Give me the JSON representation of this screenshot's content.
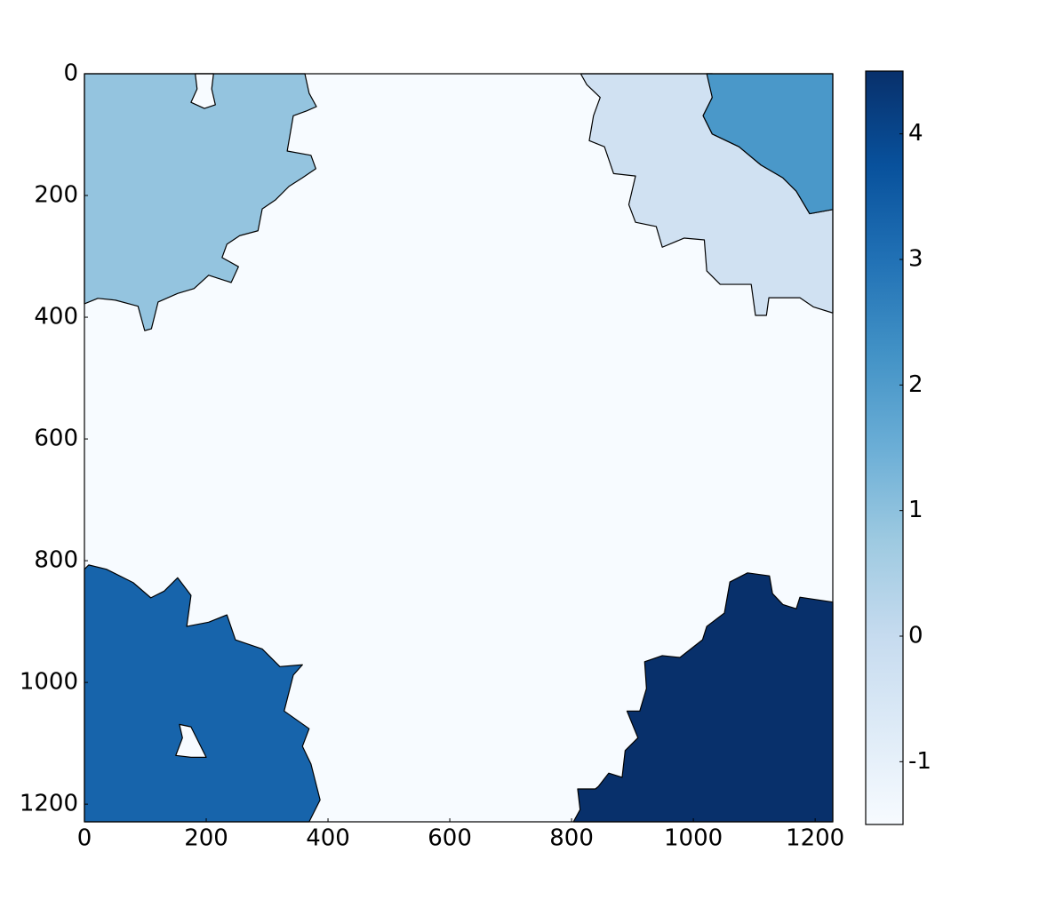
{
  "chart_data": {
    "type": "image",
    "xlim": [
      0,
      1229
    ],
    "ylim": [
      1229,
      0
    ],
    "xticks": [
      0,
      200,
      400,
      600,
      800,
      1000,
      1200
    ],
    "yticks": [
      0,
      200,
      400,
      600,
      800,
      1000,
      1200
    ],
    "background": {
      "value": -1.5,
      "color": "#f7fbff"
    },
    "regions": [
      {
        "value": 1,
        "color": "#94c4df",
        "outline": [
          [
            0,
            0
          ],
          [
            362,
            0
          ],
          [
            369,
            32
          ],
          [
            381,
            54
          ],
          [
            365,
            61
          ],
          [
            343,
            69
          ],
          [
            333,
            127
          ],
          [
            372,
            134
          ],
          [
            380,
            156
          ],
          [
            358,
            171
          ],
          [
            336,
            185
          ],
          [
            314,
            207
          ],
          [
            292,
            222
          ],
          [
            285,
            258
          ],
          [
            255,
            266
          ],
          [
            234,
            280
          ],
          [
            226,
            302
          ],
          [
            253,
            317
          ],
          [
            241,
            343
          ],
          [
            204,
            331
          ],
          [
            180,
            353
          ],
          [
            153,
            361
          ],
          [
            121,
            375
          ],
          [
            110,
            419
          ],
          [
            99,
            422
          ],
          [
            88,
            382
          ],
          [
            51,
            372
          ],
          [
            22,
            369
          ],
          [
            0,
            378
          ]
        ]
      },
      {
        "value": -1.5,
        "color": "#f7fbff",
        "outline": [
          [
            182,
            0
          ],
          [
            212,
            0
          ],
          [
            209,
            25
          ],
          [
            215,
            51
          ],
          [
            197,
            57
          ],
          [
            175,
            47
          ],
          [
            185,
            25
          ]
        ]
      },
      {
        "value": -0.5,
        "color": "#d0e1f2",
        "outline": [
          [
            815,
            0
          ],
          [
            1031,
            0
          ],
          [
            1031,
            39
          ],
          [
            1016,
            69
          ],
          [
            1031,
            99
          ],
          [
            1075,
            120
          ],
          [
            1111,
            150
          ],
          [
            1147,
            171
          ],
          [
            1169,
            193
          ],
          [
            1191,
            230
          ],
          [
            1229,
            223
          ],
          [
            1229,
            393
          ],
          [
            1197,
            383
          ],
          [
            1175,
            368
          ],
          [
            1124,
            368
          ],
          [
            1120,
            397
          ],
          [
            1102,
            397
          ],
          [
            1095,
            346
          ],
          [
            1044,
            346
          ],
          [
            1022,
            324
          ],
          [
            1018,
            273
          ],
          [
            985,
            270
          ],
          [
            949,
            285
          ],
          [
            939,
            251
          ],
          [
            905,
            244
          ],
          [
            894,
            215
          ],
          [
            905,
            168
          ],
          [
            869,
            164
          ],
          [
            854,
            120
          ],
          [
            829,
            110
          ],
          [
            836,
            69
          ],
          [
            847,
            39
          ],
          [
            825,
            18
          ]
        ]
      },
      {
        "value": 2,
        "color": "#4a98c9",
        "outline": [
          [
            1022,
            0
          ],
          [
            1229,
            0
          ],
          [
            1229,
            223
          ],
          [
            1191,
            230
          ],
          [
            1169,
            193
          ],
          [
            1147,
            171
          ],
          [
            1111,
            150
          ],
          [
            1075,
            120
          ],
          [
            1031,
            99
          ],
          [
            1016,
            69
          ],
          [
            1031,
            39
          ]
        ]
      },
      {
        "value": 3,
        "color": "#1764ab",
        "outline": [
          [
            0,
            1229
          ],
          [
            369,
            1229
          ],
          [
            387,
            1193
          ],
          [
            372,
            1134
          ],
          [
            358,
            1105
          ],
          [
            369,
            1076
          ],
          [
            328,
            1047
          ],
          [
            343,
            988
          ],
          [
            358,
            971
          ],
          [
            321,
            974
          ],
          [
            292,
            945
          ],
          [
            248,
            930
          ],
          [
            234,
            889
          ],
          [
            204,
            901
          ],
          [
            168,
            908
          ],
          [
            175,
            857
          ],
          [
            153,
            828
          ],
          [
            131,
            850
          ],
          [
            109,
            861
          ],
          [
            80,
            836
          ],
          [
            36,
            814
          ],
          [
            7,
            807
          ],
          [
            0,
            814
          ]
        ]
      },
      {
        "value": -1.5,
        "color": "#f7fbff",
        "outline": [
          [
            156,
            1069
          ],
          [
            175,
            1073
          ],
          [
            200,
            1123
          ],
          [
            175,
            1123
          ],
          [
            150,
            1120
          ],
          [
            161,
            1091
          ]
        ]
      },
      {
        "value": 4.5,
        "color": "#08306b",
        "outline": [
          [
            803,
            1229
          ],
          [
            1229,
            1229
          ],
          [
            1229,
            868
          ],
          [
            1175,
            860
          ],
          [
            1169,
            879
          ],
          [
            1147,
            872
          ],
          [
            1130,
            854
          ],
          [
            1125,
            825
          ],
          [
            1089,
            820
          ],
          [
            1060,
            835
          ],
          [
            1051,
            886
          ],
          [
            1022,
            908
          ],
          [
            1015,
            930
          ],
          [
            978,
            959
          ],
          [
            949,
            956
          ],
          [
            920,
            966
          ],
          [
            923,
            1010
          ],
          [
            912,
            1047
          ],
          [
            891,
            1047
          ],
          [
            909,
            1091
          ],
          [
            888,
            1112
          ],
          [
            883,
            1156
          ],
          [
            861,
            1149
          ],
          [
            844,
            1171
          ],
          [
            839,
            1175
          ],
          [
            810,
            1175
          ],
          [
            814,
            1209
          ]
        ]
      }
    ],
    "colorbar": {
      "clim": [
        -1.5,
        4.5
      ],
      "ticks": [
        -1,
        0,
        1,
        2,
        3,
        4
      ],
      "colormap": [
        "#f7fbff",
        "#deebf7",
        "#c6dbef",
        "#9ecae1",
        "#6baed6",
        "#4292c6",
        "#2171b5",
        "#08519c",
        "#08306b"
      ]
    }
  }
}
